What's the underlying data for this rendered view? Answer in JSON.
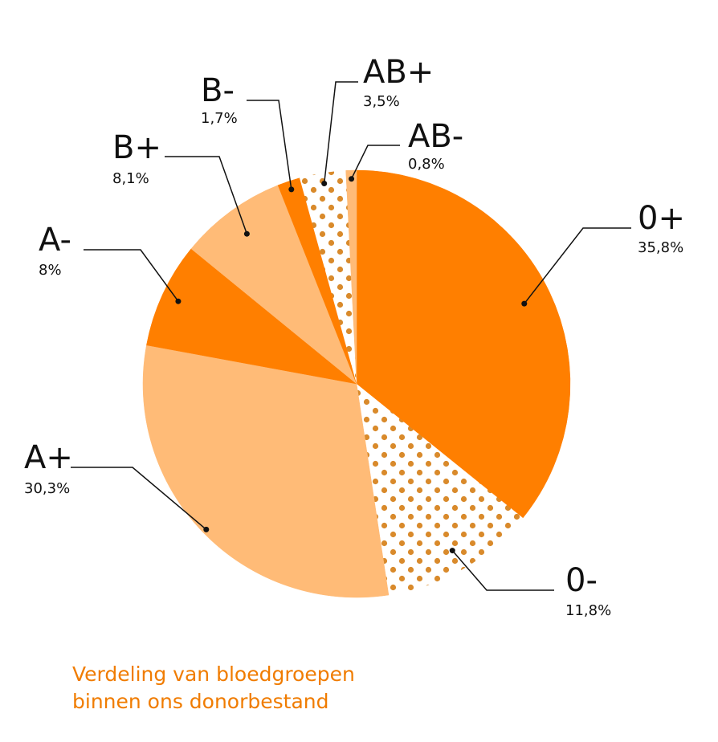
{
  "chart_data": {
    "type": "pie",
    "slices": [
      {
        "label": "0+",
        "value_label": "35,8%",
        "value": 35.8,
        "color": "#ff7f00",
        "pattern": "solid"
      },
      {
        "label": "0-",
        "value_label": "11,8%",
        "value": 11.8,
        "color": "#d98a2b",
        "pattern": "dots"
      },
      {
        "label": "A+",
        "value_label": "30,3%",
        "value": 30.3,
        "color": "#ffbb77",
        "pattern": "solid"
      },
      {
        "label": "A-",
        "value_label": "8%",
        "value": 8.0,
        "color": "#ff7f00",
        "pattern": "solid"
      },
      {
        "label": "B+",
        "value_label": "8,1%",
        "value": 8.1,
        "color": "#ffbb77",
        "pattern": "solid"
      },
      {
        "label": "B-",
        "value_label": "1,7%",
        "value": 1.7,
        "color": "#ff7f00",
        "pattern": "solid"
      },
      {
        "label": "AB+",
        "value_label": "3,5%",
        "value": 3.5,
        "color": "#d98a2b",
        "pattern": "dots"
      },
      {
        "label": "AB-",
        "value_label": "0,8%",
        "value": 0.8,
        "color": "#ffbb77",
        "pattern": "solid"
      }
    ]
  },
  "caption": {
    "line1": "Verdeling van bloedgroepen",
    "line2": "binnen ons donorbestand"
  },
  "colors": {
    "caption": "#f07c00",
    "leader": "#111111"
  }
}
